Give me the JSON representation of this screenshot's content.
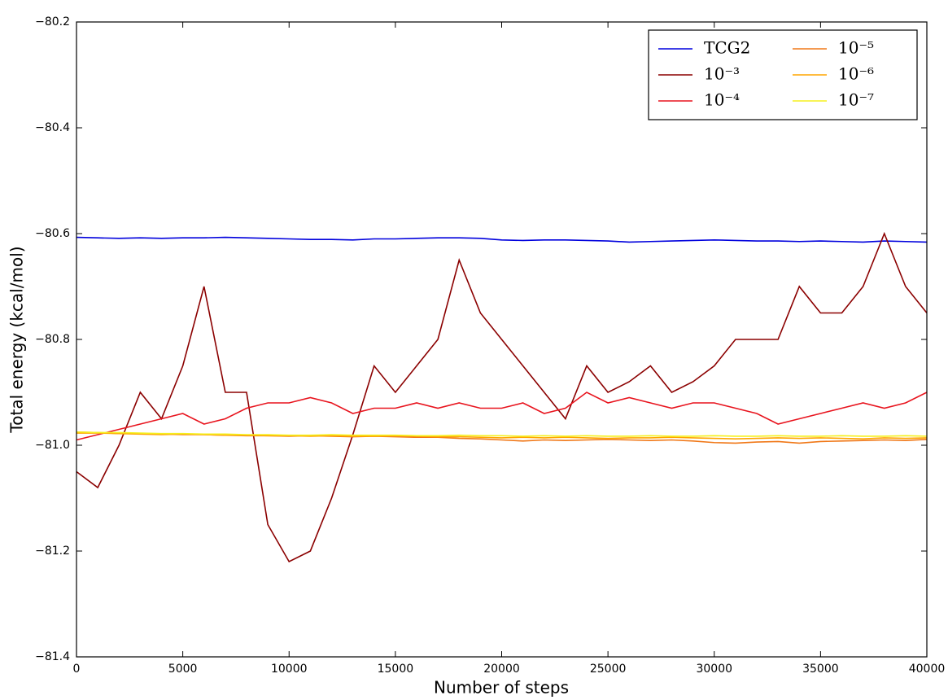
{
  "chart_data": {
    "type": "line",
    "x_label": "Number of steps",
    "y_label": "Total energy (kcal/mol)",
    "x": [
      0,
      1000,
      2000,
      3000,
      4000,
      5000,
      6000,
      7000,
      8000,
      9000,
      10000,
      11000,
      12000,
      13000,
      14000,
      15000,
      16000,
      17000,
      18000,
      19000,
      20000,
      21000,
      22000,
      23000,
      24000,
      25000,
      26000,
      27000,
      28000,
      29000,
      30000,
      31000,
      32000,
      33000,
      34000,
      35000,
      36000,
      37000,
      38000,
      39000,
      40000
    ],
    "series": [
      {
        "name": "TCG2",
        "color": "#0000dd",
        "values": [
          -80.607,
          -80.608,
          -80.609,
          -80.608,
          -80.609,
          -80.608,
          -80.608,
          -80.607,
          -80.608,
          -80.609,
          -80.61,
          -80.611,
          -80.611,
          -80.612,
          -80.61,
          -80.61,
          -80.609,
          -80.608,
          -80.608,
          -80.609,
          -80.612,
          -80.613,
          -80.612,
          -80.612,
          -80.613,
          -80.614,
          -80.616,
          -80.615,
          -80.614,
          -80.613,
          -80.612,
          -80.613,
          -80.614,
          -80.614,
          -80.615,
          -80.614,
          -80.615,
          -80.616,
          -80.614,
          -80.615,
          -80.616
        ]
      },
      {
        "name": "10⁻³",
        "color": "#8b0000",
        "values": [
          -81.05,
          -81.08,
          -81.0,
          -80.9,
          -80.95,
          -80.85,
          -80.7,
          -80.9,
          -80.9,
          -81.15,
          -81.22,
          -81.2,
          -81.1,
          -80.98,
          -80.85,
          -80.9,
          -80.85,
          -80.8,
          -80.65,
          -80.75,
          -80.8,
          -80.85,
          -80.9,
          -80.95,
          -80.85,
          -80.9,
          -80.88,
          -80.85,
          -80.9,
          -80.88,
          -80.85,
          -80.8,
          -80.8,
          -80.8,
          -80.7,
          -80.75,
          -80.75,
          -80.7,
          -80.6,
          -80.7,
          -80.75
        ]
      },
      {
        "name": "10⁻⁴",
        "color": "#e8141e",
        "values": [
          -80.99,
          -80.98,
          -80.97,
          -80.96,
          -80.95,
          -80.94,
          -80.96,
          -80.95,
          -80.93,
          -80.92,
          -80.92,
          -80.91,
          -80.92,
          -80.94,
          -80.93,
          -80.93,
          -80.92,
          -80.93,
          -80.92,
          -80.93,
          -80.93,
          -80.92,
          -80.94,
          -80.93,
          -80.9,
          -80.92,
          -80.91,
          -80.92,
          -80.93,
          -80.92,
          -80.92,
          -80.93,
          -80.94,
          -80.96,
          -80.95,
          -80.94,
          -80.93,
          -80.92,
          -80.93,
          -80.92,
          -80.9
        ]
      },
      {
        "name": "10⁻⁵",
        "color": "#f07818",
        "values": [
          -80.975,
          -80.976,
          -80.978,
          -80.978,
          -80.979,
          -80.98,
          -80.98,
          -80.981,
          -80.982,
          -80.982,
          -80.983,
          -80.982,
          -80.983,
          -80.984,
          -80.983,
          -80.984,
          -80.985,
          -80.985,
          -80.987,
          -80.988,
          -80.99,
          -80.992,
          -80.99,
          -80.991,
          -80.99,
          -80.989,
          -80.99,
          -80.991,
          -80.99,
          -80.992,
          -80.995,
          -80.996,
          -80.994,
          -80.993,
          -80.996,
          -80.993,
          -80.992,
          -80.991,
          -80.99,
          -80.991,
          -80.989
        ]
      },
      {
        "name": "10⁻⁶",
        "color": "#ffa500",
        "values": [
          -80.977,
          -80.977,
          -80.978,
          -80.979,
          -80.98,
          -80.979,
          -80.98,
          -80.981,
          -80.981,
          -80.982,
          -80.982,
          -80.983,
          -80.982,
          -80.983,
          -80.983,
          -80.982,
          -80.983,
          -80.984,
          -80.984,
          -80.985,
          -80.986,
          -80.985,
          -80.986,
          -80.985,
          -80.986,
          -80.987,
          -80.986,
          -80.986,
          -80.985,
          -80.986,
          -80.987,
          -80.988,
          -80.987,
          -80.986,
          -80.987,
          -80.986,
          -80.987,
          -80.988,
          -80.986,
          -80.987,
          -80.986
        ]
      },
      {
        "name": "10⁻⁷",
        "color": "#f5f01e",
        "values": [
          -80.975,
          -80.976,
          -80.976,
          -80.977,
          -80.978,
          -80.978,
          -80.979,
          -80.979,
          -80.98,
          -80.98,
          -80.981,
          -80.981,
          -80.98,
          -80.981,
          -80.981,
          -80.981,
          -80.982,
          -80.982,
          -80.981,
          -80.982,
          -80.982,
          -80.983,
          -80.982,
          -80.983,
          -80.982,
          -80.983,
          -80.983,
          -80.982,
          -80.983,
          -80.983,
          -80.982,
          -80.983,
          -80.983,
          -80.982,
          -80.983,
          -80.983,
          -80.982,
          -80.983,
          -80.983,
          -80.982,
          -80.983
        ]
      }
    ],
    "xlim": [
      0,
      40000
    ],
    "xticks": [
      0,
      5000,
      10000,
      15000,
      20000,
      25000,
      30000,
      35000,
      40000
    ],
    "ylim": [
      -81.4,
      -80.2
    ],
    "yticks": [
      {
        "value": -81.4,
        "label": "−81.4"
      },
      {
        "value": -81.2,
        "label": "−81.2"
      },
      {
        "value": -81.0,
        "label": "−81.0"
      },
      {
        "value": -80.8,
        "label": "−80.8"
      },
      {
        "value": -80.6,
        "label": "−80.6"
      },
      {
        "value": -80.4,
        "label": "−80.4"
      },
      {
        "value": -80.2,
        "label": "−80.2"
      }
    ],
    "legend": "upper right",
    "legend_columns": 2
  }
}
